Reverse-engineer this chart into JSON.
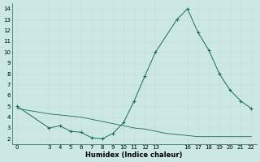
{
  "xlabel": "Humidex (Indice chaleur)",
  "bg_color": "#cce8e4",
  "line_color": "#1a6b5a",
  "grid_color": "#c8ddd8",
  "xlim": [
    -0.5,
    22.5
  ],
  "ylim": [
    1.5,
    14.5
  ],
  "yticks": [
    2,
    3,
    4,
    5,
    6,
    7,
    8,
    9,
    10,
    11,
    12,
    13,
    14
  ],
  "xticks": [
    0,
    3,
    4,
    5,
    6,
    7,
    8,
    9,
    10,
    11,
    12,
    13,
    16,
    17,
    18,
    19,
    20,
    21,
    22
  ],
  "main_x": [
    0,
    3,
    4,
    5,
    6,
    7,
    8,
    9,
    10,
    11,
    12,
    13,
    15,
    16,
    17,
    18,
    19,
    20,
    21,
    22
  ],
  "main_y": [
    5.0,
    3.0,
    3.2,
    2.7,
    2.6,
    2.1,
    2.0,
    2.5,
    3.5,
    5.5,
    7.8,
    10.0,
    13.0,
    14.0,
    11.8,
    10.2,
    8.0,
    6.5,
    5.5,
    4.8
  ],
  "flat_x": [
    0,
    3,
    4,
    5,
    6,
    7,
    8,
    9,
    10,
    11,
    12,
    13,
    14,
    15,
    16,
    17,
    18,
    19,
    20,
    21,
    22
  ],
  "flat_y": [
    4.8,
    4.3,
    4.2,
    4.1,
    4.0,
    3.8,
    3.6,
    3.4,
    3.2,
    3.0,
    2.9,
    2.7,
    2.5,
    2.4,
    2.3,
    2.2,
    2.2,
    2.2,
    2.2,
    2.2,
    2.2
  ],
  "figsize": [
    3.2,
    2.0
  ],
  "dpi": 100
}
